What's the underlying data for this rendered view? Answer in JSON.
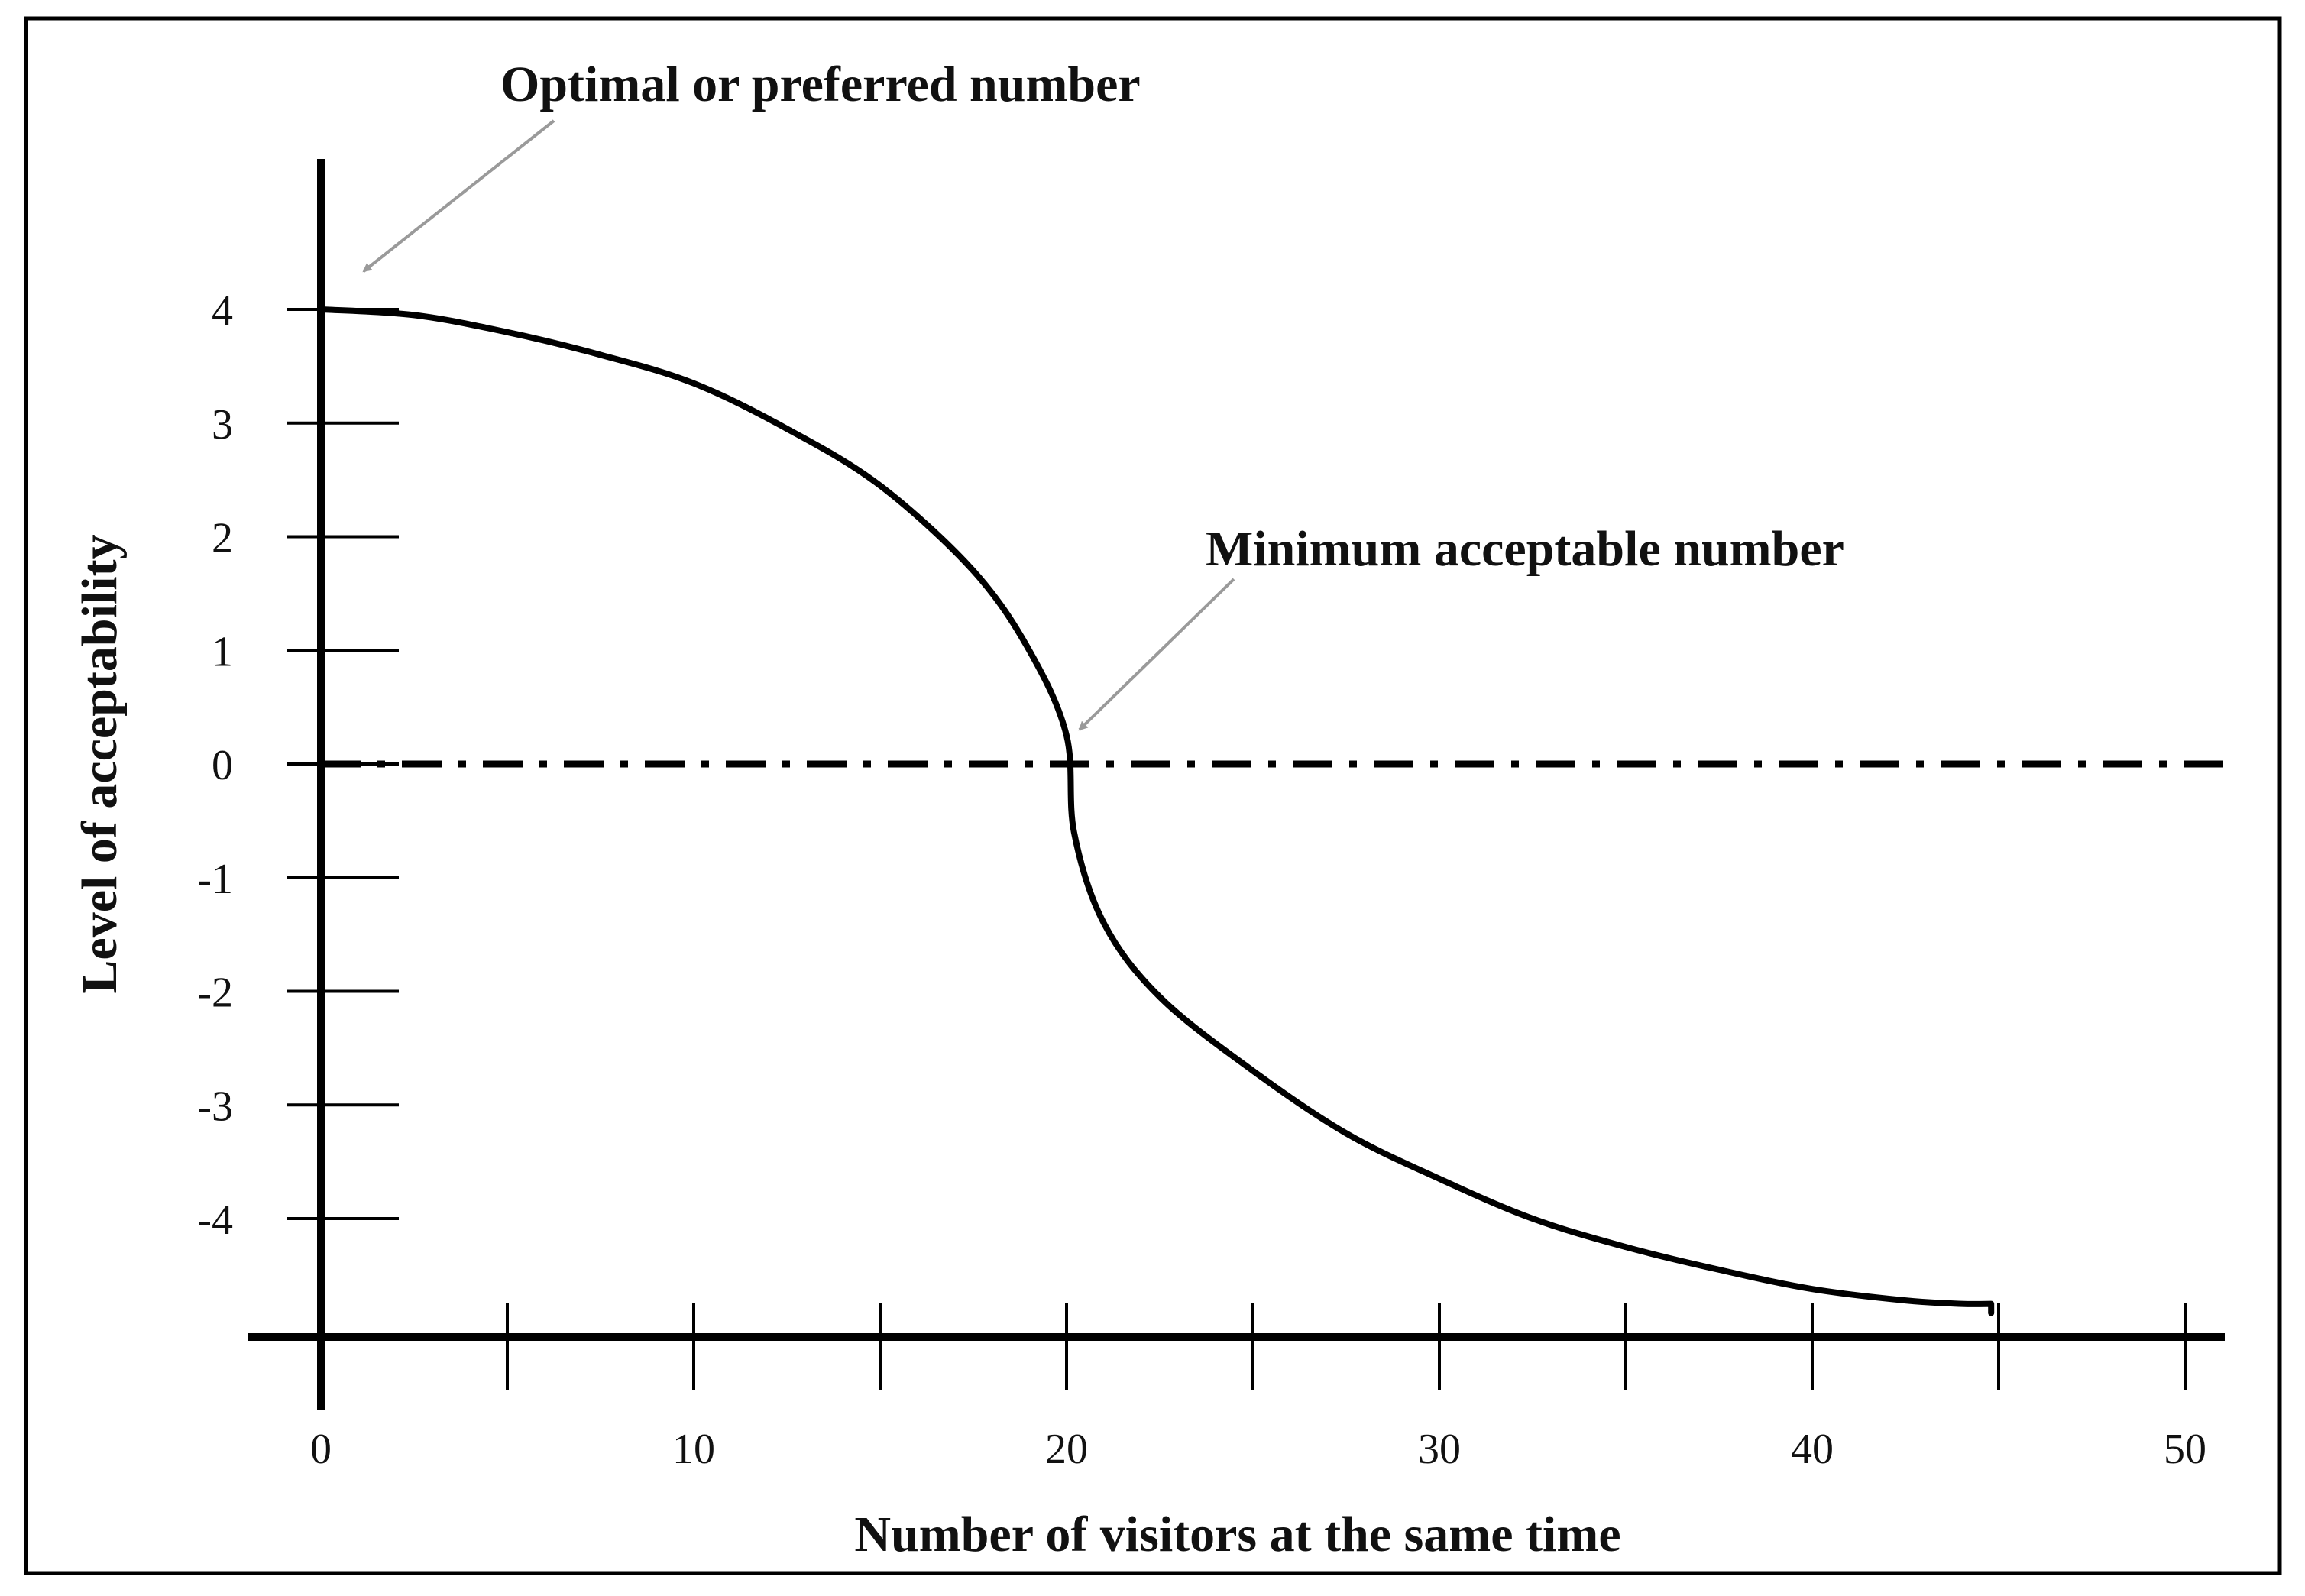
{
  "chart_data": {
    "type": "line",
    "title": "",
    "xlabel": "Number of visitors at the same time",
    "ylabel": "Level of acceptability",
    "xlim": [
      0,
      50
    ],
    "ylim": [
      -5,
      5
    ],
    "x_ticks": [
      0,
      5,
      10,
      15,
      20,
      25,
      30,
      35,
      40,
      45,
      50
    ],
    "x_tick_labels": [
      {
        "value": 0,
        "label": "0"
      },
      {
        "value": 10,
        "label": "10"
      },
      {
        "value": 20,
        "label": "20"
      },
      {
        "value": 30,
        "label": "30"
      },
      {
        "value": 40,
        "label": "40"
      },
      {
        "value": 50,
        "label": "50"
      }
    ],
    "y_ticks": [
      4,
      3,
      2,
      1,
      0,
      -1,
      -2,
      -3,
      -4
    ],
    "y_tick_labels": [
      "4",
      "3",
      "2",
      "1",
      "0",
      "-1",
      "-2",
      "-3",
      "-4"
    ],
    "grid": false,
    "legend": "none",
    "series": [
      {
        "x": [
          0,
          2.5,
          5,
          7.5,
          10,
          12.5,
          15,
          17.5,
          19,
          20,
          20.2,
          21,
          22.5,
          25,
          27.5,
          30,
          32.5,
          35,
          37.5,
          40,
          42.5,
          44,
          44.8
        ],
        "y": [
          4,
          3.95,
          3.8,
          3.6,
          3.35,
          2.95,
          2.45,
          1.7,
          1.0,
          0.25,
          -0.6,
          -1.4,
          -2.05,
          -2.7,
          -3.25,
          -3.65,
          -4.0,
          -4.25,
          -4.45,
          -4.62,
          -4.72,
          -4.75,
          -4.75
        ]
      }
    ],
    "reference_line": {
      "y": 0,
      "style": "dash-dot"
    },
    "annotations": [
      {
        "text": "Optimal or preferred number",
        "x": 0,
        "y": 4
      },
      {
        "text": "Minimum acceptable number",
        "x": 20,
        "y": 0
      }
    ],
    "colors": {
      "line": "#000000",
      "arrow": "#9a9a9a",
      "frame": "#000000"
    }
  }
}
